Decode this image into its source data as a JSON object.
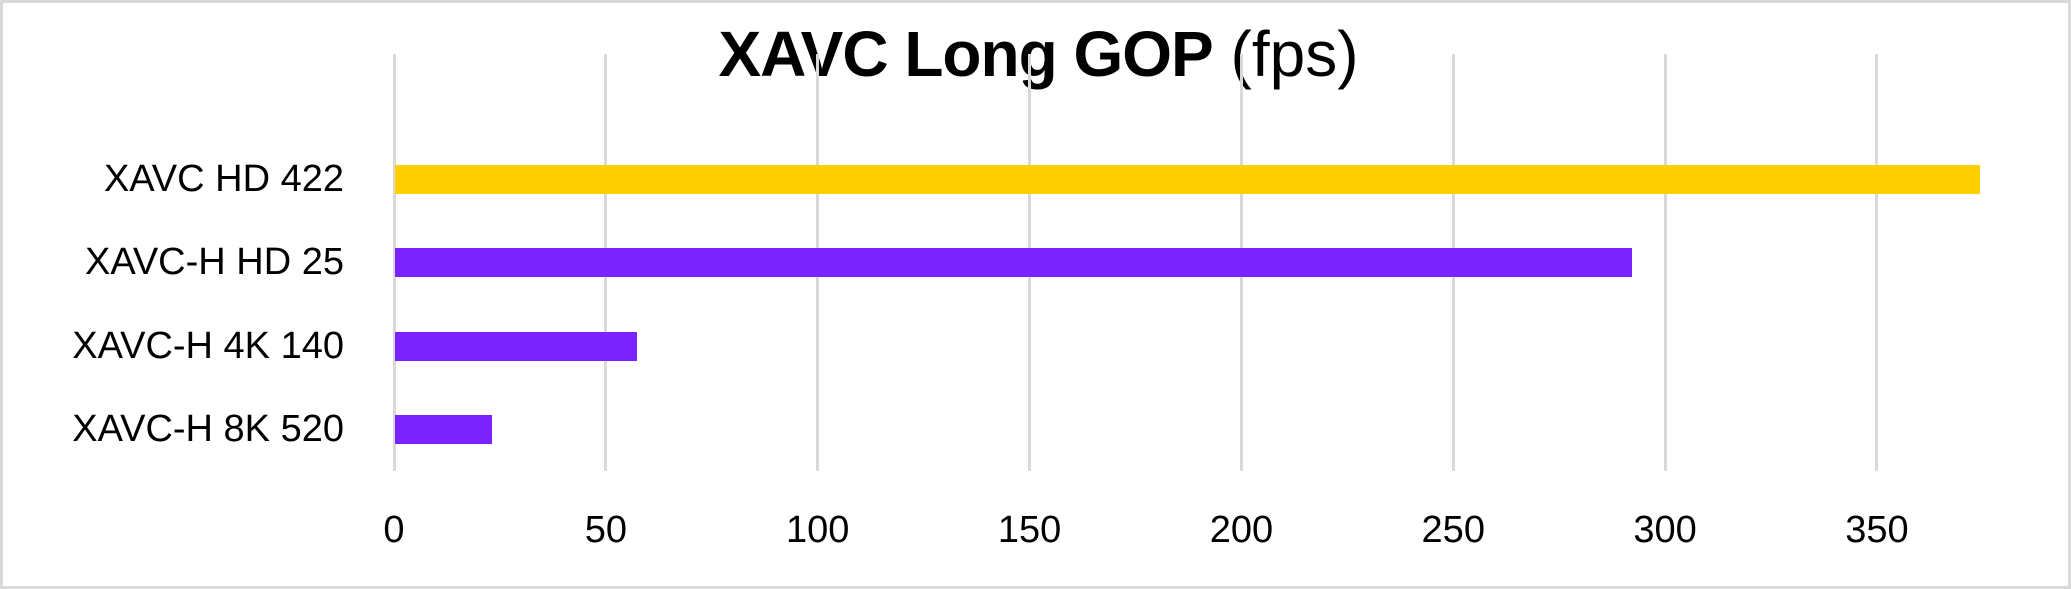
{
  "chart_data": {
    "type": "bar",
    "orientation": "horizontal",
    "title": "XAVC Long GOP (fps)",
    "title_parts": {
      "bold": "XAVC Long GOP",
      "normal": "(fps)"
    },
    "categories": [
      "XAVC HD 422",
      "XAVC-H HD 25",
      "XAVC-H 4K 140",
      "XAVC-H 8K 520"
    ],
    "values": [
      374,
      292,
      57,
      23
    ],
    "colors": [
      "#FFCF00",
      "#7A22FF",
      "#7A22FF",
      "#7A22FF"
    ],
    "xlabel": "",
    "ylabel": "",
    "xlim": [
      0,
      375
    ],
    "xticks": [
      0,
      50,
      100,
      150,
      200,
      250,
      300,
      350
    ],
    "xtick_labels": [
      "0",
      "50",
      "100",
      "150",
      "200",
      "250",
      "300",
      "350"
    ],
    "grid": true,
    "legend": null
  }
}
